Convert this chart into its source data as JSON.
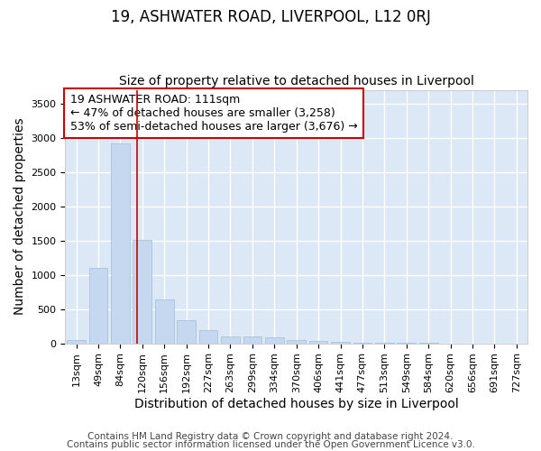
{
  "title1": "19, ASHWATER ROAD, LIVERPOOL, L12 0RJ",
  "title2": "Size of property relative to detached houses in Liverpool",
  "xlabel": "Distribution of detached houses by size in Liverpool",
  "ylabel": "Number of detached properties",
  "bar_labels": [
    "13sqm",
    "49sqm",
    "84sqm",
    "120sqm",
    "156sqm",
    "192sqm",
    "227sqm",
    "263sqm",
    "299sqm",
    "334sqm",
    "370sqm",
    "406sqm",
    "441sqm",
    "477sqm",
    "513sqm",
    "549sqm",
    "584sqm",
    "620sqm",
    "656sqm",
    "691sqm",
    "727sqm"
  ],
  "bar_values": [
    50,
    1100,
    2920,
    1510,
    640,
    335,
    195,
    100,
    100,
    90,
    50,
    30,
    25,
    10,
    5,
    3,
    2,
    1,
    0,
    0,
    0
  ],
  "bar_color": "#c5d8f0",
  "bar_edge_color": "#a0bcd8",
  "vline_color": "#cc0000",
  "annotation_line1": "19 ASHWATER ROAD: 111sqm",
  "annotation_line2": "← 47% of detached houses are smaller (3,258)",
  "annotation_line3": "53% of semi-detached houses are larger (3,676) →",
  "annotation_box_facecolor": "#ffffff",
  "annotation_box_edgecolor": "#cc0000",
  "ylim": [
    0,
    3700
  ],
  "yticks": [
    0,
    500,
    1000,
    1500,
    2000,
    2500,
    3000,
    3500
  ],
  "footer1": "Contains HM Land Registry data © Crown copyright and database right 2024.",
  "footer2": "Contains public sector information licensed under the Open Government Licence v3.0.",
  "bg_color": "#ffffff",
  "plot_bg_color": "#dce8f5",
  "grid_color": "#ffffff",
  "title1_fontsize": 12,
  "title2_fontsize": 10,
  "axis_label_fontsize": 10,
  "tick_fontsize": 8,
  "annotation_fontsize": 9,
  "footer_fontsize": 7.5
}
